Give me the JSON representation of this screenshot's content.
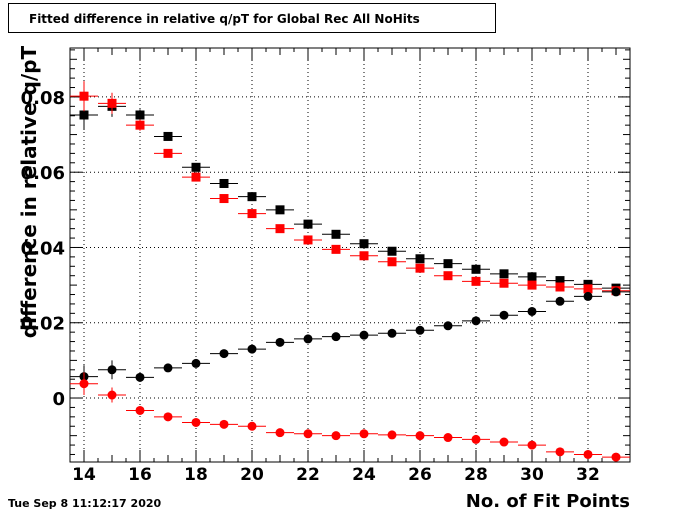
{
  "header": {
    "title": "Fitted difference in relative q/pT  for Global Rec All NoHits"
  },
  "footer": {
    "timestamp": "Tue Sep  8 11:12:17 2020"
  },
  "chart_data": {
    "type": "scatter",
    "title": "Fitted difference in relative q/pT  for Global Rec All NoHits",
    "xlabel": "No. of Fit Points",
    "ylabel": "difference in relative q/pT",
    "xlim": [
      13.5,
      33.5
    ],
    "ylim": [
      -0.017,
      0.093
    ],
    "xticks": [
      14,
      16,
      18,
      20,
      22,
      24,
      26,
      28,
      30,
      32
    ],
    "yticks": [
      0,
      0.02,
      0.04,
      0.06,
      0.08
    ],
    "ytick_labels": [
      "0",
      "0.02",
      "0.04",
      "0.06",
      "0.08"
    ],
    "grid": true,
    "series": [
      {
        "marker": "square",
        "color": "#000000",
        "x": [
          14,
          15,
          16,
          17,
          18,
          19,
          20,
          21,
          22,
          23,
          24,
          25,
          26,
          27,
          28,
          29,
          30,
          31,
          32,
          33
        ],
        "y": [
          0.0752,
          0.0775,
          0.0752,
          0.0695,
          0.0613,
          0.057,
          0.0535,
          0.05,
          0.0462,
          0.0435,
          0.041,
          0.039,
          0.037,
          0.0357,
          0.0342,
          0.033,
          0.0322,
          0.0312,
          0.0302,
          0.0292
        ],
        "yerr": [
          0.004,
          0.0028,
          0.0015,
          0.001,
          0.0008,
          0.0006,
          0.0005,
          0.0004,
          0.0004,
          0.0004,
          0.0004,
          0.0003,
          0.0003,
          0.0003,
          0.0003,
          0.0003,
          0.0003,
          0.0003,
          0.0003,
          0.0003
        ]
      },
      {
        "marker": "square",
        "color": "#ff0000",
        "x": [
          14,
          15,
          16,
          17,
          18,
          19,
          20,
          21,
          22,
          23,
          24,
          25,
          26,
          27,
          28,
          29,
          30,
          31,
          32,
          33
        ],
        "y": [
          0.0802,
          0.0783,
          0.0725,
          0.065,
          0.0587,
          0.053,
          0.049,
          0.045,
          0.042,
          0.0395,
          0.0378,
          0.0362,
          0.0345,
          0.0325,
          0.031,
          0.0305,
          0.03,
          0.0295,
          0.029,
          0.0285
        ],
        "yerr": [
          0.004,
          0.0028,
          0.0015,
          0.001,
          0.0008,
          0.0006,
          0.0005,
          0.0004,
          0.0004,
          0.0004,
          0.0004,
          0.0003,
          0.0003,
          0.0003,
          0.0003,
          0.0003,
          0.0003,
          0.0003,
          0.0003,
          0.0003
        ]
      },
      {
        "marker": "circle",
        "color": "#000000",
        "x": [
          14,
          15,
          16,
          17,
          18,
          19,
          20,
          21,
          22,
          23,
          24,
          25,
          26,
          27,
          28,
          29,
          30,
          31,
          32,
          33
        ],
        "y": [
          0.0057,
          0.0075,
          0.0055,
          0.008,
          0.0092,
          0.0118,
          0.013,
          0.0148,
          0.0157,
          0.0163,
          0.0167,
          0.0172,
          0.018,
          0.0192,
          0.0205,
          0.022,
          0.023,
          0.0257,
          0.027,
          0.0282
        ],
        "yerr": [
          0.003,
          0.0025,
          0.0012,
          0.0008,
          0.0006,
          0.0005,
          0.0004,
          0.0004,
          0.0003,
          0.0003,
          0.0003,
          0.0003,
          0.0003,
          0.0003,
          0.0003,
          0.0003,
          0.0003,
          0.0003,
          0.0003,
          0.0003
        ]
      },
      {
        "marker": "circle",
        "color": "#ff0000",
        "x": [
          14,
          15,
          16,
          17,
          18,
          19,
          20,
          21,
          22,
          23,
          24,
          25,
          26,
          27,
          28,
          29,
          30,
          31,
          32,
          33
        ],
        "y": [
          0.0038,
          0.0008,
          -0.0033,
          -0.005,
          -0.0065,
          -0.007,
          -0.0075,
          -0.0092,
          -0.0095,
          -0.01,
          -0.0095,
          -0.0098,
          -0.01,
          -0.0105,
          -0.011,
          -0.0117,
          -0.0125,
          -0.0143,
          -0.015,
          -0.0157
        ],
        "yerr": [
          0.003,
          0.002,
          0.001,
          0.0007,
          0.0006,
          0.0005,
          0.0004,
          0.0004,
          0.0003,
          0.0003,
          0.0003,
          0.0003,
          0.0003,
          0.0003,
          0.0003,
          0.0003,
          0.0003,
          0.0003,
          0.0003,
          0.0003
        ]
      }
    ]
  }
}
